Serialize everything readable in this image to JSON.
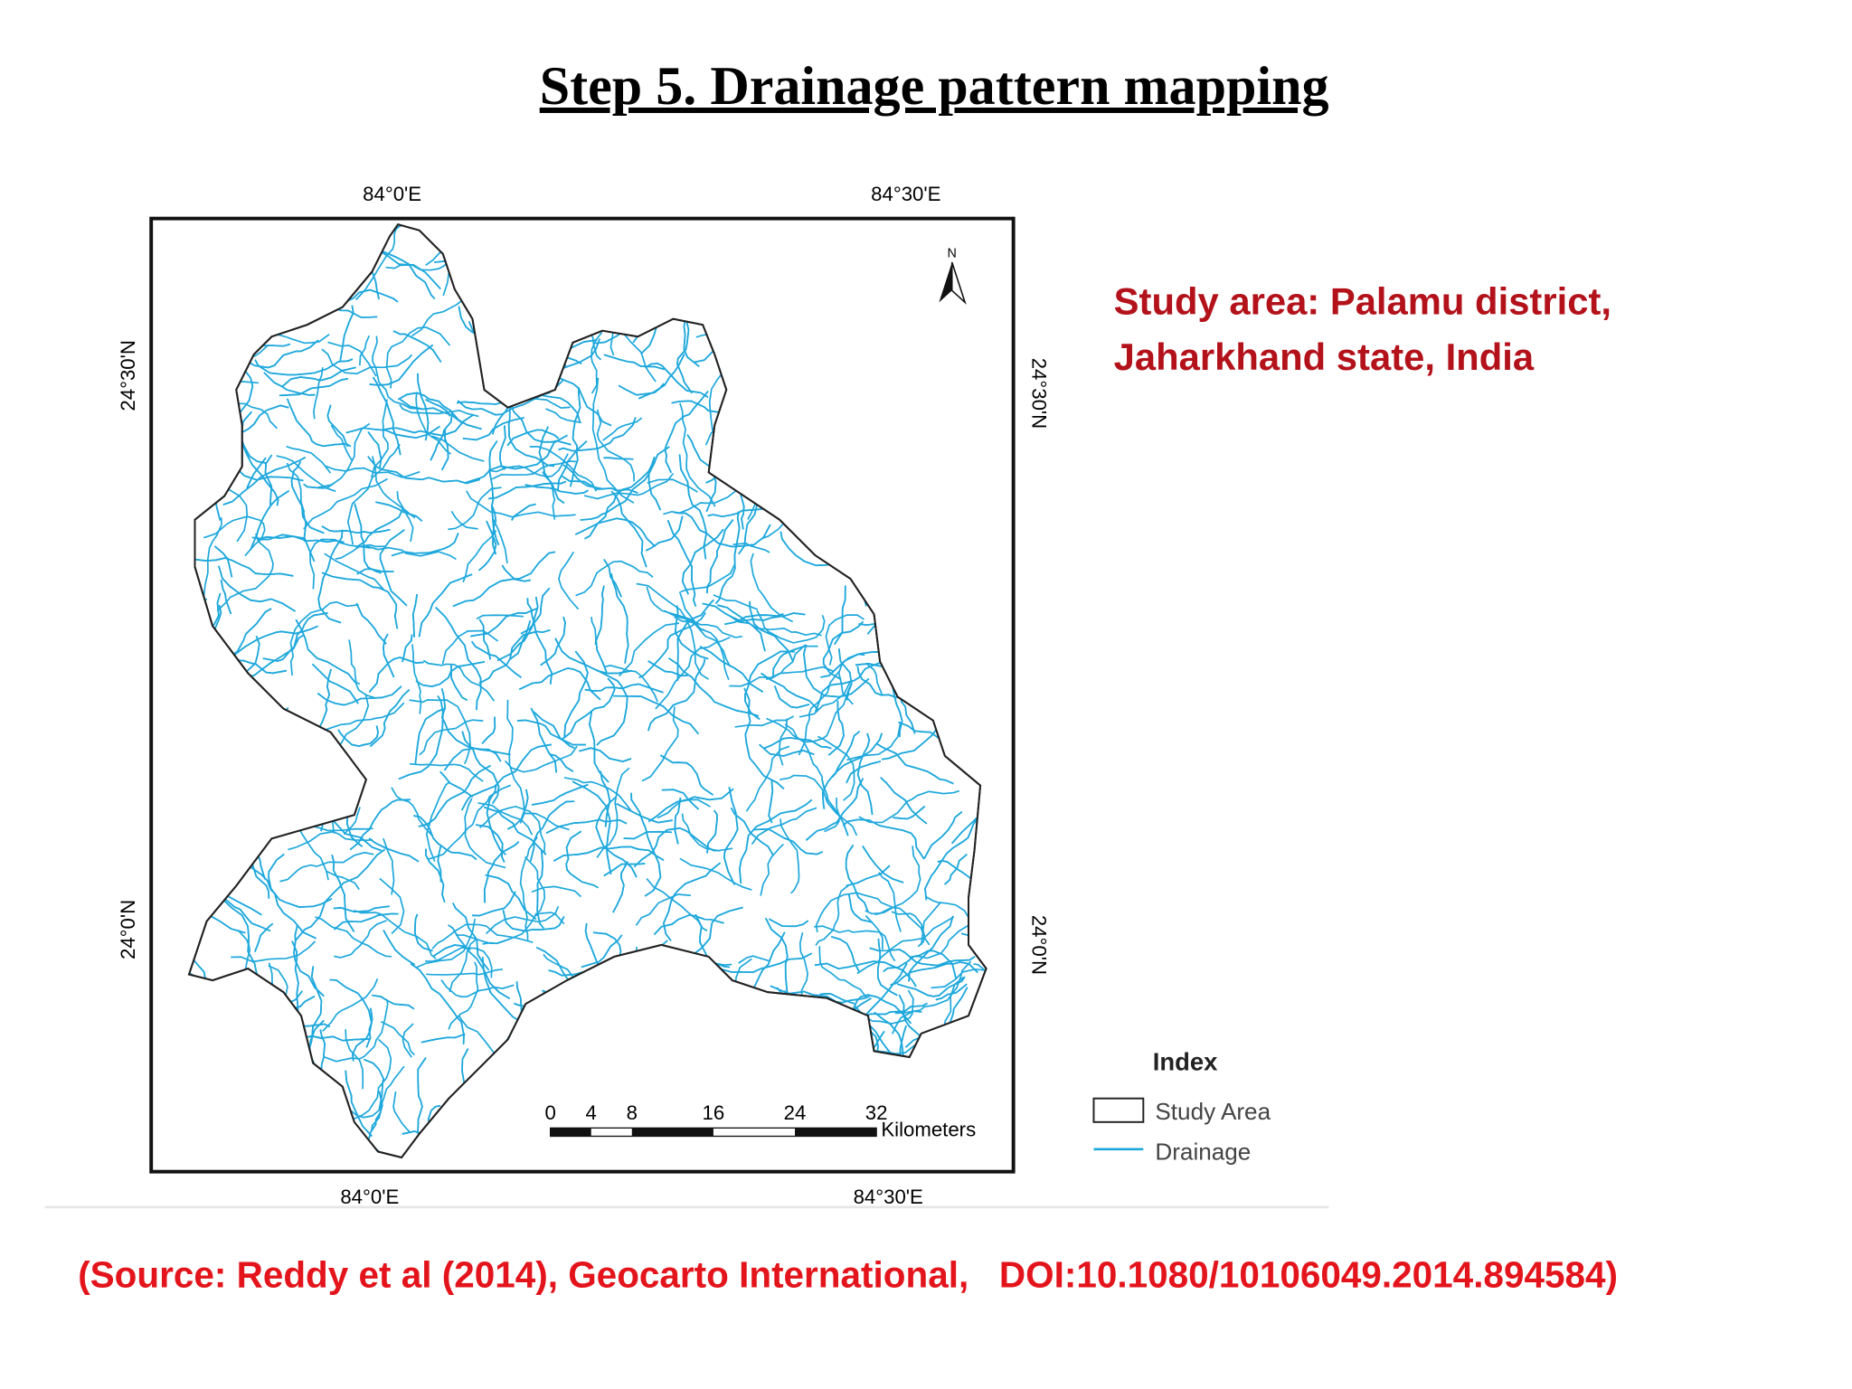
{
  "title": "Step 5. Drainage pattern mapping",
  "map": {
    "top_labels": [
      "84°0'E",
      "84°30'E"
    ],
    "bottom_labels": [
      "84°0'E",
      "84°30'E"
    ],
    "left_labels": [
      "24°30'N",
      "24°0'N"
    ],
    "right_labels": [
      "24°30'N",
      "24°0'N"
    ],
    "north": "N",
    "scale": {
      "ticks": [
        0,
        4,
        8,
        16,
        24,
        32
      ],
      "unit": "Kilometers"
    },
    "legend": {
      "title": "Index",
      "items": [
        "Study Area",
        "Drainage"
      ]
    }
  },
  "study_area": [
    "Study area: Palamu district,",
    "Jaharkhand state, India"
  ],
  "source": "(Source: Reddy et al (2014), Geocarto International,   DOI:10.1080/10106049.2014.894584)"
}
